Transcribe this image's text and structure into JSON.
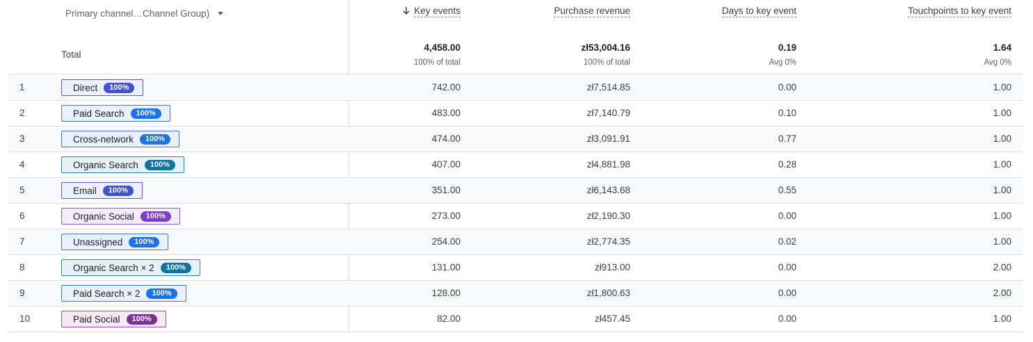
{
  "header": {
    "dimension_label": "Primary channel…Channel Group)",
    "columns": {
      "key_events": "Key events",
      "purchase_revenue": "Purchase revenue",
      "days_to_key_event": "Days to key event",
      "touchpoints_to_key_event": "Touchpoints to key event"
    },
    "sort_icon": "arrow-down-icon"
  },
  "total": {
    "label": "Total",
    "key_events": "4,458.00",
    "key_events_sub": "100% of total",
    "purchase_revenue": "zł53,004.16",
    "purchase_revenue_sub": "100% of total",
    "days": "0.19",
    "days_sub": "Avg 0%",
    "touchpoints": "1.64",
    "touchpoints_sub": "Avg 0%"
  },
  "rows": [
    {
      "index": "1",
      "channel": "Direct",
      "pct": "100%",
      "key_events": "742.00",
      "revenue": "zł7,514.85",
      "days": "0.00",
      "touchpoints": "1.00",
      "chip_bg": "#eef0fd",
      "chip_border": "#4f5bd5",
      "pill": "#3f51d8"
    },
    {
      "index": "2",
      "channel": "Paid Search",
      "pct": "100%",
      "key_events": "483.00",
      "revenue": "zł7,140.79",
      "days": "0.10",
      "touchpoints": "1.00",
      "chip_bg": "#e8f1fd",
      "chip_border": "#3b78d8",
      "pill": "#1a73e8"
    },
    {
      "index": "3",
      "channel": "Cross-network",
      "pct": "100%",
      "key_events": "474.00",
      "revenue": "zł3,091.91",
      "days": "0.77",
      "touchpoints": "1.00",
      "chip_bg": "#e8f1fd",
      "chip_border": "#3b78d8",
      "pill": "#1a73e8"
    },
    {
      "index": "4",
      "channel": "Organic Search",
      "pct": "100%",
      "key_events": "407.00",
      "revenue": "zł4,881.98",
      "days": "0.28",
      "touchpoints": "1.00",
      "chip_bg": "#e6f2f8",
      "chip_border": "#2b7fb8",
      "pill": "#12739f"
    },
    {
      "index": "5",
      "channel": "Email",
      "pct": "100%",
      "key_events": "351.00",
      "revenue": "zł6,143.68",
      "days": "0.55",
      "touchpoints": "1.00",
      "chip_bg": "#eef0fd",
      "chip_border": "#4f5bd5",
      "pill": "#3f51d8"
    },
    {
      "index": "6",
      "channel": "Organic Social",
      "pct": "100%",
      "key_events": "273.00",
      "revenue": "zł2,190.30",
      "days": "0.00",
      "touchpoints": "1.00",
      "chip_bg": "#f3ecfb",
      "chip_border": "#8e5bc8",
      "pill": "#7b3fc4"
    },
    {
      "index": "7",
      "channel": "Unassigned",
      "pct": "100%",
      "key_events": "254.00",
      "revenue": "zł2,774.35",
      "days": "0.02",
      "touchpoints": "1.00",
      "chip_bg": "#e8f1fd",
      "chip_border": "#3b78d8",
      "pill": "#1a73e8"
    },
    {
      "index": "8",
      "channel": "Organic Search × 2",
      "pct": "100%",
      "key_events": "131.00",
      "revenue": "zł913.00",
      "days": "0.00",
      "touchpoints": "2.00",
      "chip_bg": "#e6f2f8",
      "chip_border": "#2b7fb8",
      "pill": "#12739f"
    },
    {
      "index": "9",
      "channel": "Paid Search × 2",
      "pct": "100%",
      "key_events": "128.00",
      "revenue": "zł1,800.63",
      "days": "0.00",
      "touchpoints": "2.00",
      "chip_bg": "#e8f1fd",
      "chip_border": "#3b78d8",
      "pill": "#1a73e8"
    },
    {
      "index": "10",
      "channel": "Paid Social",
      "pct": "100%",
      "key_events": "82.00",
      "revenue": "zł457.45",
      "days": "0.00",
      "touchpoints": "1.00",
      "chip_bg": "#f6eaf7",
      "chip_border": "#9b4aa8",
      "pill": "#7b2f96"
    }
  ]
}
